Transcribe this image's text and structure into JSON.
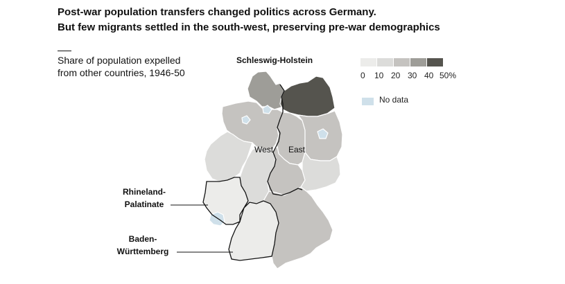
{
  "title": {
    "line1": "Post-war population transfers changed politics across Germany.",
    "line2": "But few migrants settled in the south-west, preserving pre-war demographics"
  },
  "subtitle": {
    "line1": "Share of population expelled",
    "line2": "from other countries, 1946-50"
  },
  "labels": {
    "schleswig_holstein": "Schleswig-Holstein",
    "rhineland_palatinate": [
      "Rhineland-",
      "Palatinate"
    ],
    "baden_wurttemberg": [
      "Baden-",
      "Württemberg"
    ],
    "west": "West",
    "east": "East"
  },
  "legend": {
    "ticks": [
      "0",
      "10",
      "20",
      "30",
      "40",
      "50%"
    ],
    "bins": [
      {
        "range": "0-10",
        "color": "#ececea"
      },
      {
        "range": "10-20",
        "color": "#dcdcda"
      },
      {
        "range": "20-30",
        "color": "#c5c3c0"
      },
      {
        "range": "30-40",
        "color": "#9e9d98"
      },
      {
        "range": "40-50",
        "color": "#55544e"
      }
    ],
    "no_data_label": "No data",
    "no_data_color": "#cfe0ea"
  },
  "regions": [
    {
      "name": "Schleswig-Holstein",
      "bin": "30-40"
    },
    {
      "name": "Mecklenburg-Vorpommern",
      "bin": "40-50"
    },
    {
      "name": "Lower Saxony",
      "bin": "20-30"
    },
    {
      "name": "North Rhine-Westphalia",
      "bin": "10-20"
    },
    {
      "name": "Hesse",
      "bin": "10-20"
    },
    {
      "name": "Rhineland-Palatinate",
      "bin": "0-10"
    },
    {
      "name": "Saarland",
      "bin": "no data"
    },
    {
      "name": "Baden-Württemberg",
      "bin": "0-10"
    },
    {
      "name": "Bavaria",
      "bin": "20-30"
    },
    {
      "name": "Brandenburg",
      "bin": "20-30"
    },
    {
      "name": "Saxony-Anhalt",
      "bin": "20-30"
    },
    {
      "name": "Thuringia",
      "bin": "20-30"
    },
    {
      "name": "Saxony",
      "bin": "10-20"
    },
    {
      "name": "Berlin",
      "bin": "no data"
    },
    {
      "name": "Hamburg",
      "bin": "no data"
    },
    {
      "name": "Bremen",
      "bin": "no data"
    }
  ]
}
